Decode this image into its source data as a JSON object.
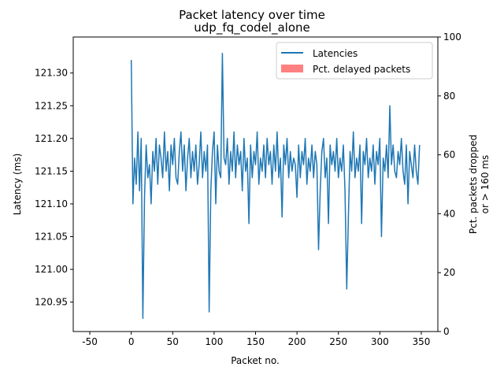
{
  "chart_data": {
    "type": "line",
    "title": "Packet latency over time",
    "subtitle": "udp_fq_codel_alone",
    "xlabel": "Packet no.",
    "ylabel": "Latency (ms)",
    "y2label_line1": "Pct. packets dropped",
    "y2label_line2": "or > 160 ms",
    "xlim": [
      -70,
      370
    ],
    "ylim": [
      120.905,
      121.355
    ],
    "y2lim": [
      0,
      100
    ],
    "xticks": [
      -50,
      0,
      50,
      100,
      150,
      200,
      250,
      300,
      350
    ],
    "yticks": [
      120.95,
      121.0,
      121.05,
      121.1,
      121.15,
      121.2,
      121.25,
      121.3
    ],
    "y2ticks": [
      0,
      20,
      40,
      60,
      80,
      100
    ],
    "legend_position": "top-right",
    "legend": [
      "Latencies",
      "Pct. delayed packets"
    ],
    "colors": {
      "latency": "#1f77b4",
      "delayed": "#ff8080"
    },
    "series": [
      {
        "name": "Latencies",
        "x": [
          0,
          2,
          4,
          6,
          8,
          10,
          12,
          14,
          16,
          18,
          20,
          22,
          24,
          26,
          28,
          30,
          32,
          34,
          36,
          38,
          40,
          42,
          44,
          46,
          48,
          50,
          52,
          54,
          56,
          58,
          60,
          62,
          64,
          66,
          68,
          70,
          72,
          74,
          76,
          78,
          80,
          82,
          84,
          86,
          88,
          90,
          92,
          94,
          96,
          98,
          100,
          102,
          104,
          106,
          108,
          110,
          112,
          114,
          116,
          118,
          120,
          122,
          124,
          126,
          128,
          130,
          132,
          134,
          136,
          138,
          140,
          142,
          144,
          146,
          148,
          150,
          152,
          154,
          156,
          158,
          160,
          162,
          164,
          166,
          168,
          170,
          172,
          174,
          176,
          178,
          180,
          182,
          184,
          186,
          188,
          190,
          192,
          194,
          196,
          198,
          200,
          202,
          204,
          206,
          208,
          210,
          212,
          214,
          216,
          218,
          220,
          222,
          224,
          226,
          228,
          230,
          232,
          234,
          236,
          238,
          240,
          242,
          244,
          246,
          248,
          250,
          252,
          254,
          256,
          258,
          260,
          262,
          264,
          266,
          268,
          270,
          272,
          274,
          276,
          278,
          280,
          282,
          284,
          286,
          288,
          290,
          292,
          294,
          296,
          298,
          300,
          302,
          304,
          306,
          308,
          310,
          312,
          314,
          316,
          318,
          320,
          322,
          324,
          326,
          328,
          330,
          332,
          334,
          336,
          338,
          340,
          342,
          344,
          346,
          348
        ],
        "values": [
          121.32,
          121.1,
          121.17,
          121.13,
          121.21,
          121.12,
          121.2,
          120.925,
          121.11,
          121.19,
          121.14,
          121.16,
          121.1,
          121.18,
          121.15,
          121.2,
          121.13,
          121.19,
          121.17,
          121.14,
          121.21,
          121.15,
          121.18,
          121.12,
          121.19,
          121.16,
          121.2,
          121.14,
          121.13,
          121.18,
          121.21,
          121.15,
          121.19,
          121.12,
          121.17,
          121.2,
          121.14,
          121.18,
          121.15,
          121.19,
          121.13,
          121.16,
          121.21,
          121.14,
          121.18,
          121.15,
          121.19,
          120.935,
          121.12,
          121.18,
          121.21,
          121.1,
          121.19,
          121.15,
          121.14,
          121.33,
          121.17,
          121.16,
          121.2,
          121.13,
          121.18,
          121.15,
          121.21,
          121.14,
          121.19,
          121.16,
          121.18,
          121.12,
          121.2,
          121.15,
          121.17,
          121.07,
          121.19,
          121.14,
          121.18,
          121.16,
          121.21,
          121.13,
          121.17,
          121.15,
          121.19,
          121.14,
          121.2,
          121.16,
          121.18,
          121.13,
          121.19,
          121.15,
          121.21,
          121.14,
          121.17,
          121.08,
          121.19,
          121.16,
          121.2,
          121.14,
          121.18,
          121.15,
          121.17,
          121.16,
          121.11,
          121.19,
          121.14,
          121.18,
          121.16,
          121.2,
          121.13,
          121.17,
          121.15,
          121.19,
          121.14,
          121.18,
          121.16,
          121.03,
          121.12,
          121.18,
          121.2,
          121.14,
          121.17,
          121.07,
          121.19,
          121.16,
          121.18,
          121.15,
          121.2,
          121.14,
          121.17,
          121.15,
          121.19,
          121.12,
          120.97,
          121.08,
          121.18,
          121.15,
          121.21,
          121.14,
          121.17,
          121.15,
          121.19,
          121.07,
          121.18,
          121.16,
          121.2,
          121.14,
          121.17,
          121.15,
          121.19,
          121.13,
          121.18,
          121.16,
          121.2,
          121.05,
          121.17,
          121.15,
          121.19,
          121.14,
          121.25,
          121.16,
          121.19,
          121.15,
          121.14,
          121.18,
          121.16,
          121.2,
          121.15,
          121.13,
          121.19,
          121.1,
          121.18,
          121.16,
          121.14,
          121.19,
          121.15,
          121.13,
          121.19
        ]
      },
      {
        "name": "Pct. delayed packets",
        "values": []
      }
    ]
  }
}
